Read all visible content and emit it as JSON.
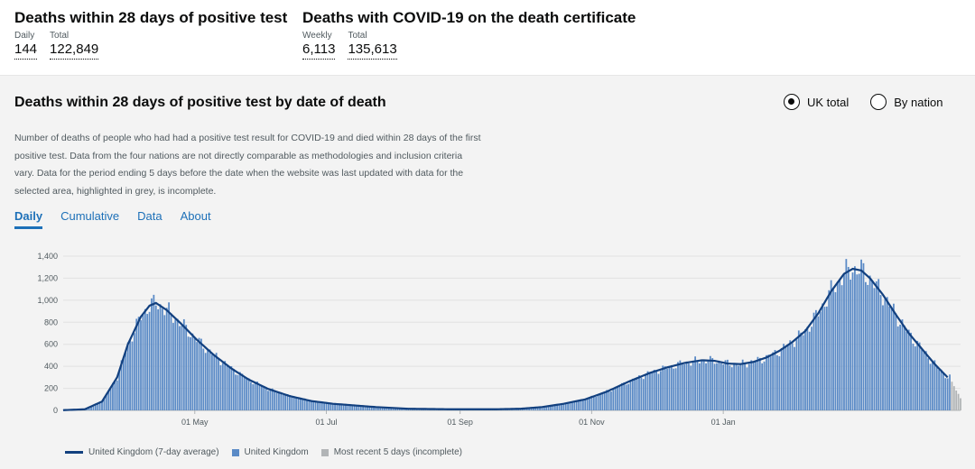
{
  "header": {
    "deaths28": {
      "title": "Deaths within 28 days of positive test",
      "daily_label": "Daily",
      "daily_value": "144",
      "total_label": "Total",
      "total_value": "122,849"
    },
    "deaths_cert": {
      "title": "Deaths with COVID-19 on the death certificate",
      "weekly_label": "Weekly",
      "weekly_value": "6,113",
      "total_label": "Total",
      "total_value": "135,613"
    }
  },
  "card": {
    "title": "Deaths within 28 days of positive test by date of death",
    "radios": [
      {
        "label": "UK total",
        "selected": true
      },
      {
        "label": "By nation",
        "selected": false
      }
    ],
    "description": "Number of deaths of people who had had a positive test result for COVID-19 and died within 28 days of the first positive test. Data from the four nations are not directly comparable as methodologies and inclusion criteria vary. Data for the period ending 5 days before the date when the website was last updated with data for the selected area, highlighted in grey, is incomplete.",
    "tabs": [
      {
        "label": "Daily",
        "active": true
      },
      {
        "label": "Cumulative",
        "active": false
      },
      {
        "label": "Data",
        "active": false
      },
      {
        "label": "About",
        "active": false
      }
    ]
  },
  "chart_data": {
    "type": "bar",
    "y_ticks": [
      "0",
      "200",
      "400",
      "600",
      "800",
      "1,000",
      "1,200",
      "1,400"
    ],
    "ylim": [
      0,
      1400
    ],
    "x_ticks": [
      "01 May",
      "01 Jul",
      "01 Sep",
      "01 Nov",
      "01 Jan"
    ],
    "grid": true,
    "bar_color": "#5a8ac6",
    "incomplete_color": "#b1b4b6",
    "line_color": "#12407f",
    "incomplete_count": 5,
    "weekly_average_points": [
      {
        "day": 0,
        "value": 2
      },
      {
        "day": 10,
        "value": 10
      },
      {
        "day": 18,
        "value": 80
      },
      {
        "day": 25,
        "value": 300
      },
      {
        "day": 30,
        "value": 600
      },
      {
        "day": 36,
        "value": 850
      },
      {
        "day": 40,
        "value": 950
      },
      {
        "day": 43,
        "value": 975
      },
      {
        "day": 48,
        "value": 910
      },
      {
        "day": 55,
        "value": 780
      },
      {
        "day": 62,
        "value": 640
      },
      {
        "day": 70,
        "value": 500
      },
      {
        "day": 78,
        "value": 380
      },
      {
        "day": 86,
        "value": 280
      },
      {
        "day": 95,
        "value": 195
      },
      {
        "day": 105,
        "value": 130
      },
      {
        "day": 115,
        "value": 85
      },
      {
        "day": 125,
        "value": 60
      },
      {
        "day": 135,
        "value": 45
      },
      {
        "day": 145,
        "value": 30
      },
      {
        "day": 160,
        "value": 15
      },
      {
        "day": 180,
        "value": 10
      },
      {
        "day": 200,
        "value": 10
      },
      {
        "day": 212,
        "value": 15
      },
      {
        "day": 222,
        "value": 30
      },
      {
        "day": 232,
        "value": 60
      },
      {
        "day": 242,
        "value": 100
      },
      {
        "day": 252,
        "value": 170
      },
      {
        "day": 262,
        "value": 260
      },
      {
        "day": 272,
        "value": 340
      },
      {
        "day": 280,
        "value": 390
      },
      {
        "day": 288,
        "value": 430
      },
      {
        "day": 296,
        "value": 455
      },
      {
        "day": 302,
        "value": 450
      },
      {
        "day": 308,
        "value": 425
      },
      {
        "day": 314,
        "value": 420
      },
      {
        "day": 320,
        "value": 440
      },
      {
        "day": 326,
        "value": 480
      },
      {
        "day": 332,
        "value": 540
      },
      {
        "day": 338,
        "value": 620
      },
      {
        "day": 344,
        "value": 720
      },
      {
        "day": 350,
        "value": 880
      },
      {
        "day": 356,
        "value": 1080
      },
      {
        "day": 362,
        "value": 1240
      },
      {
        "day": 366,
        "value": 1285
      },
      {
        "day": 370,
        "value": 1270
      },
      {
        "day": 374,
        "value": 1200
      },
      {
        "day": 380,
        "value": 1050
      },
      {
        "day": 386,
        "value": 870
      },
      {
        "day": 392,
        "value": 700
      },
      {
        "day": 398,
        "value": 560
      },
      {
        "day": 404,
        "value": 420
      },
      {
        "day": 410,
        "value": 300
      }
    ],
    "last_day": 416,
    "x_tick_days": [
      61,
      122,
      184,
      245,
      306
    ],
    "legend": [
      "United Kingdom (7-day average)",
      "United Kingdom",
      "Most recent 5 days (incomplete)"
    ]
  }
}
